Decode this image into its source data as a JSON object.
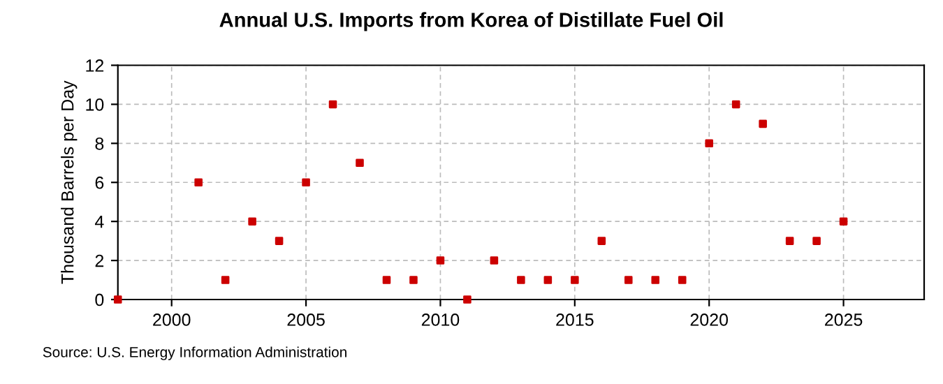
{
  "chart_data": {
    "type": "scatter",
    "title": "Annual U.S. Imports from Korea of Distillate Fuel Oil",
    "ylabel": "Thousand Barrels per Day",
    "x": [
      1998,
      2001,
      2002,
      2003,
      2004,
      2005,
      2006,
      2007,
      2008,
      2009,
      2010,
      2011,
      2012,
      2013,
      2014,
      2015,
      2016,
      2017,
      2018,
      2019,
      2020,
      2021,
      2022,
      2023,
      2024,
      2025
    ],
    "series": [
      {
        "color": "#cc0000",
        "values": [
          0,
          6,
          1,
          4,
          3,
          6,
          10,
          7,
          1,
          1,
          2,
          0,
          2,
          1,
          1,
          1,
          3,
          1,
          1,
          1,
          8,
          10,
          9,
          3,
          3,
          4
        ]
      }
    ],
    "xlim": [
      1998,
      2028
    ],
    "xticks": [
      2000,
      2005,
      2010,
      2015,
      2020,
      2025
    ],
    "ylim": [
      0,
      12
    ],
    "yticks": [
      0,
      2,
      4,
      6,
      8,
      10,
      12
    ],
    "grid": true,
    "marker": "square",
    "annotations": [
      "Source: U.S. Energy Information Administration"
    ]
  }
}
